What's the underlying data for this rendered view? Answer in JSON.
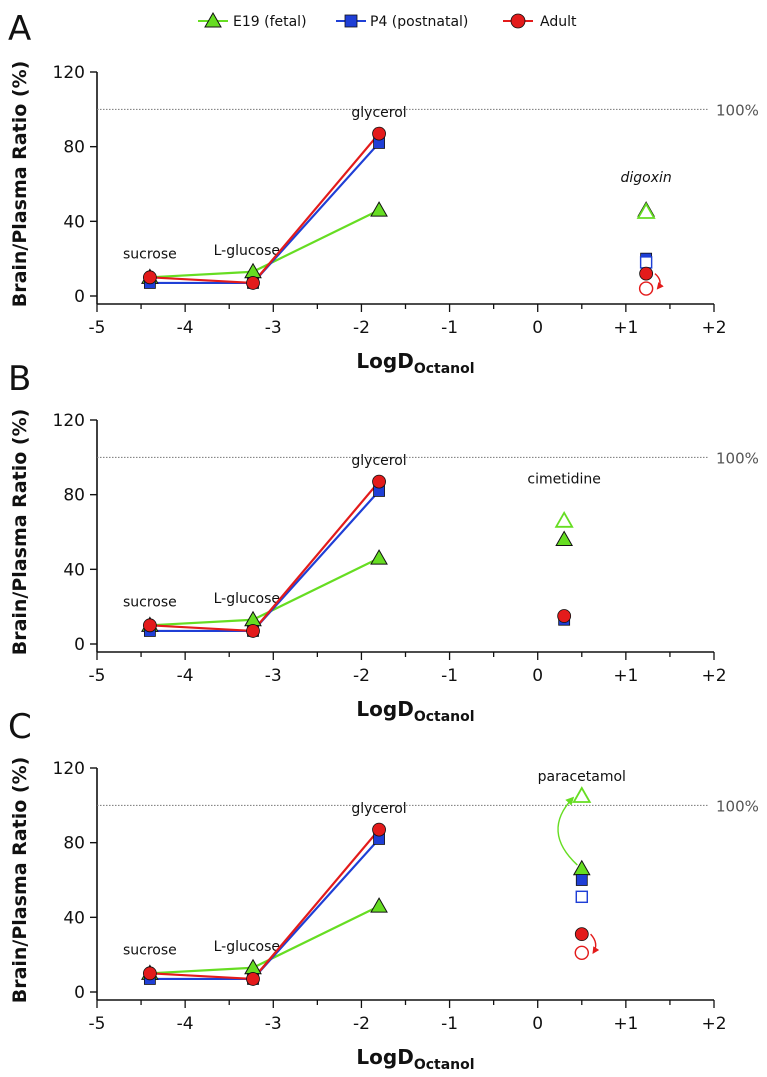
{
  "legend": [
    {
      "name": "E19 (fetal)",
      "marker": "triangle",
      "color": "#66dd22"
    },
    {
      "name": "P4 (postnatal)",
      "marker": "square",
      "color": "#1f3fd6"
    },
    {
      "name": "Adult",
      "marker": "circle",
      "color": "#e31b1b"
    }
  ],
  "chart_data": [
    {
      "panel": "A",
      "type": "line",
      "title": "",
      "xlabel": "LogD",
      "xlabel_sub": "Octanol",
      "ylabel": "Brain/Plasma Ratio (%)",
      "xlim": [
        -5,
        2
      ],
      "ylim": [
        0,
        120
      ],
      "x_ticks": [
        "-5",
        "-4",
        "-3",
        "-2",
        "-1",
        "0",
        "+1",
        "+2"
      ],
      "y_ticks": [
        "0",
        "40",
        "80",
        "120"
      ],
      "reference_line": {
        "y": 100,
        "label": "100%"
      },
      "series": [
        {
          "name": "E19 (fetal)",
          "x": [
            -4.4,
            -3.23,
            -1.8
          ],
          "y": [
            10,
            13,
            46
          ]
        },
        {
          "name": "P4 (postnatal)",
          "x": [
            -4.4,
            -3.23,
            -1.8
          ],
          "y": [
            7,
            7,
            82
          ]
        },
        {
          "name": "Adult",
          "x": [
            -4.4,
            -3.23,
            -1.8
          ],
          "y": [
            10,
            7,
            87
          ]
        }
      ],
      "labels": [
        {
          "text": "sucrose",
          "x": -4.4,
          "y": 20
        },
        {
          "text": "L-glucose",
          "x": -3.3,
          "y": 22
        },
        {
          "text": "glycerol",
          "x": -1.8,
          "y": 96
        },
        {
          "text": "digoxin",
          "x": 1.23,
          "y": 61
        }
      ],
      "extra_points": [
        {
          "name": "E19 (fetal)",
          "x": 1.23,
          "y": 46,
          "filled": true
        },
        {
          "name": "E19 (fetal)",
          "x": 1.23,
          "y": 45,
          "filled": false
        },
        {
          "name": "P4 (postnatal)",
          "x": 1.23,
          "y": 20,
          "filled": true
        },
        {
          "name": "P4 (postnatal)",
          "x": 1.23,
          "y": 18,
          "filled": false
        },
        {
          "name": "Adult",
          "x": 1.23,
          "y": 12,
          "filled": true
        },
        {
          "name": "Adult",
          "x": 1.23,
          "y": 4,
          "filled": false
        }
      ],
      "arrows": [
        {
          "name": "Adult",
          "from": [
            1.33,
            12
          ],
          "to": [
            1.36,
            4
          ]
        }
      ]
    },
    {
      "panel": "B",
      "type": "line",
      "title": "",
      "xlabel": "LogD",
      "xlabel_sub": "Octanol",
      "ylabel": "Brain/Plasma Ratio (%)",
      "xlim": [
        -5,
        2
      ],
      "ylim": [
        0,
        120
      ],
      "x_ticks": [
        "-5",
        "-4",
        "-3",
        "-2",
        "-1",
        "0",
        "+1",
        "+2"
      ],
      "y_ticks": [
        "0",
        "40",
        "80",
        "120"
      ],
      "reference_line": {
        "y": 100,
        "label": "100%"
      },
      "series": [
        {
          "name": "E19 (fetal)",
          "x": [
            -4.4,
            -3.23,
            -1.8
          ],
          "y": [
            10,
            13,
            46
          ]
        },
        {
          "name": "P4 (postnatal)",
          "x": [
            -4.4,
            -3.23,
            -1.8
          ],
          "y": [
            7,
            7,
            82
          ]
        },
        {
          "name": "Adult",
          "x": [
            -4.4,
            -3.23,
            -1.8
          ],
          "y": [
            10,
            7,
            87
          ]
        }
      ],
      "labels": [
        {
          "text": "sucrose",
          "x": -4.4,
          "y": 20
        },
        {
          "text": "L-glucose",
          "x": -3.3,
          "y": 22
        },
        {
          "text": "glycerol",
          "x": -1.8,
          "y": 96
        },
        {
          "text": "cimetidine",
          "x": 0.3,
          "y": 86
        }
      ],
      "extra_points": [
        {
          "name": "E19 (fetal)",
          "x": 0.3,
          "y": 66,
          "filled": false
        },
        {
          "name": "E19 (fetal)",
          "x": 0.3,
          "y": 56,
          "filled": true
        },
        {
          "name": "P4 (postnatal)",
          "x": 0.3,
          "y": 13,
          "filled": true
        },
        {
          "name": "Adult",
          "x": 0.3,
          "y": 15,
          "filled": true
        }
      ],
      "arrows": []
    },
    {
      "panel": "C",
      "type": "line",
      "title": "",
      "xlabel": "LogD",
      "xlabel_sub": "Octanol",
      "ylabel": "Brain/Plasma Ratio (%)",
      "xlim": [
        -5,
        2
      ],
      "ylim": [
        0,
        120
      ],
      "x_ticks": [
        "-5",
        "-4",
        "-3",
        "-2",
        "-1",
        "0",
        "+1",
        "+2"
      ],
      "y_ticks": [
        "0",
        "40",
        "80",
        "120"
      ],
      "reference_line": {
        "y": 100,
        "label": "100%"
      },
      "series": [
        {
          "name": "E19 (fetal)",
          "x": [
            -4.4,
            -3.23,
            -1.8
          ],
          "y": [
            10,
            13,
            46
          ]
        },
        {
          "name": "P4 (postnatal)",
          "x": [
            -4.4,
            -3.23,
            -1.8
          ],
          "y": [
            7,
            7,
            82
          ]
        },
        {
          "name": "Adult",
          "x": [
            -4.4,
            -3.23,
            -1.8
          ],
          "y": [
            10,
            7,
            87
          ]
        }
      ],
      "labels": [
        {
          "text": "sucrose",
          "x": -4.4,
          "y": 20
        },
        {
          "text": "L-glucose",
          "x": -3.3,
          "y": 22
        },
        {
          "text": "glycerol",
          "x": -1.8,
          "y": 96
        },
        {
          "text": "paracetamol",
          "x": 0.5,
          "y": 113
        }
      ],
      "extra_points": [
        {
          "name": "E19 (fetal)",
          "x": 0.5,
          "y": 105,
          "filled": false
        },
        {
          "name": "E19 (fetal)",
          "x": 0.5,
          "y": 66,
          "filled": true
        },
        {
          "name": "P4 (postnatal)",
          "x": 0.5,
          "y": 60,
          "filled": true
        },
        {
          "name": "P4 (postnatal)",
          "x": 0.5,
          "y": 51,
          "filled": false
        },
        {
          "name": "Adult",
          "x": 0.5,
          "y": 31,
          "filled": true
        },
        {
          "name": "Adult",
          "x": 0.5,
          "y": 21,
          "filled": false
        }
      ],
      "arrows": [
        {
          "name": "E19 (fetal)",
          "from": [
            0.45,
            68
          ],
          "to": [
            0.4,
            104
          ],
          "curve": "left"
        },
        {
          "name": "Adult",
          "from": [
            0.6,
            31
          ],
          "to": [
            0.63,
            21
          ]
        }
      ]
    }
  ]
}
